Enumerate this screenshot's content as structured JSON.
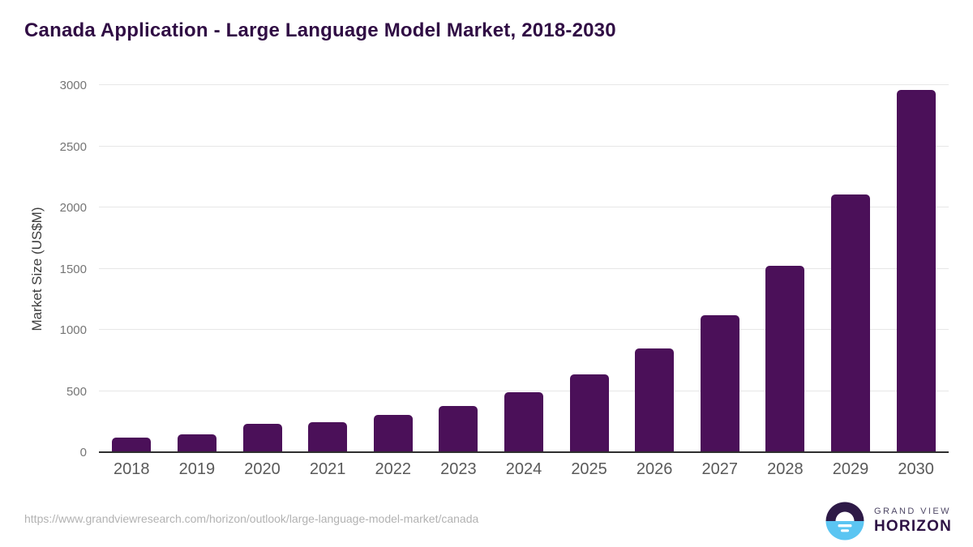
{
  "title": "Canada Application - Large Language Model Market, 2018-2030",
  "chart_data": {
    "type": "bar",
    "categories": [
      "2018",
      "2019",
      "2020",
      "2021",
      "2022",
      "2023",
      "2024",
      "2025",
      "2026",
      "2027",
      "2028",
      "2029",
      "2030"
    ],
    "values": [
      115,
      137,
      222,
      240,
      297,
      372,
      486,
      630,
      838,
      1113,
      1517,
      2100,
      2955
    ],
    "title": "Canada Application - Large Language Model Market, 2018-2030",
    "xlabel": "",
    "ylabel": "Market Size (US$M)",
    "ylim": [
      0,
      3000
    ],
    "yticks": [
      0,
      500,
      1000,
      1500,
      2000,
      2500,
      3000
    ],
    "grid": true,
    "legend": "none",
    "bar_color": "#4b1059"
  },
  "colors": {
    "title": "#300d44",
    "bar": "#4b1059",
    "gridline": "#e7e7e7",
    "axis_line": "#2f2f2f",
    "y_tick": "#757575",
    "x_tick": "#595959",
    "url": "#b2b2b2",
    "logo_purple": "#2e1a47",
    "logo_blue": "#5bc5f2"
  },
  "footer": {
    "url": "https://www.grandviewresearch.com/horizon/outlook/large-language-model-market/canada",
    "logo_top": "GRAND VIEW",
    "logo_bottom": "HORIZON"
  }
}
